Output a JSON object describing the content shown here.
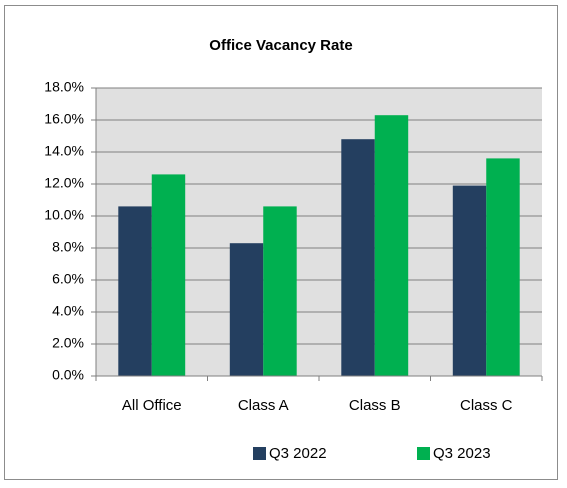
{
  "chart_data": {
    "type": "bar",
    "title": "Office Vacancy Rate",
    "categories": [
      "All Office",
      "Class A",
      "Class B",
      "Class C"
    ],
    "series": [
      {
        "name": "Q3 2022",
        "color": "#243f60",
        "values": [
          10.6,
          8.3,
          14.8,
          11.9
        ]
      },
      {
        "name": "Q3 2023",
        "color": "#00b050",
        "values": [
          12.6,
          10.6,
          16.3,
          13.6
        ]
      }
    ],
    "ylim": [
      0,
      18
    ],
    "yticks": [
      {
        "value": 0,
        "label": "0.0%"
      },
      {
        "value": 2,
        "label": "2.0%"
      },
      {
        "value": 4,
        "label": "4.0%"
      },
      {
        "value": 6,
        "label": "6.0%"
      },
      {
        "value": 8,
        "label": "8.0%"
      },
      {
        "value": 10,
        "label": "10.0%"
      },
      {
        "value": 12,
        "label": "12.0%"
      },
      {
        "value": 14,
        "label": "14.0%"
      },
      {
        "value": 16,
        "label": "16.0%"
      },
      {
        "value": 18,
        "label": "18.0%"
      }
    ],
    "grid": true,
    "legend": "bottom"
  }
}
